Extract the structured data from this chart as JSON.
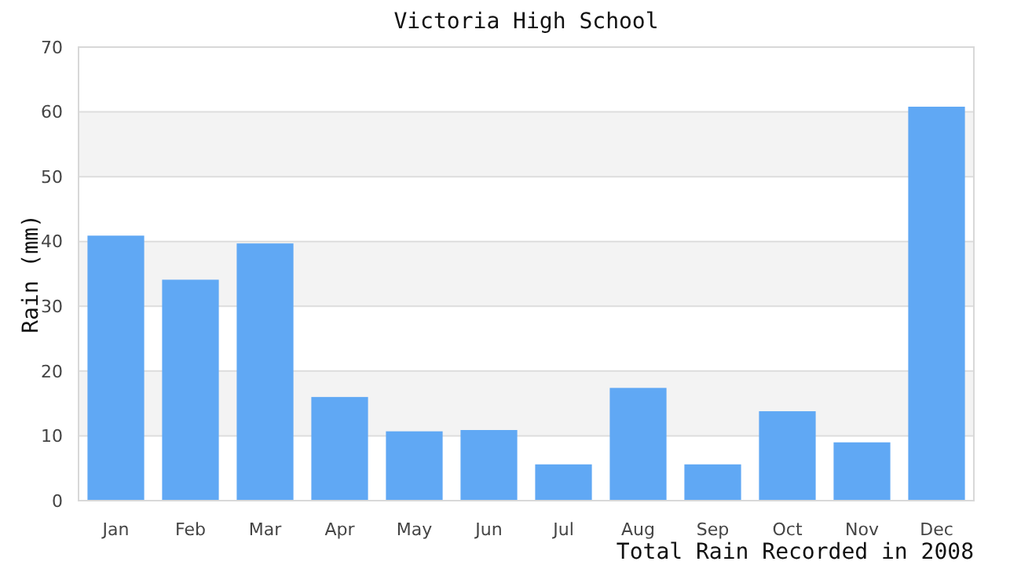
{
  "chart_data": {
    "type": "bar",
    "title": "Victoria High School",
    "xlabel": "Total Rain Recorded in 2008",
    "ylabel": "Rain (mm)",
    "categories": [
      "Jan",
      "Feb",
      "Mar",
      "Apr",
      "May",
      "Jun",
      "Jul",
      "Aug",
      "Sep",
      "Oct",
      "Nov",
      "Dec"
    ],
    "values": [
      40.9,
      34.1,
      39.7,
      16.0,
      10.7,
      10.9,
      5.6,
      17.4,
      5.6,
      13.8,
      9.0,
      60.8
    ],
    "color": "#60a8f4",
    "ylim": [
      0,
      70
    ],
    "yticks": [
      0,
      10,
      20,
      30,
      40,
      50,
      60,
      70
    ],
    "grid": "y"
  }
}
